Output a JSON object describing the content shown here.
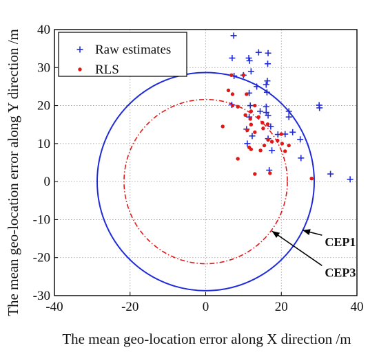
{
  "chart_data": {
    "type": "scatter",
    "xlabel": "The mean geo-location error along X direction /m",
    "ylabel": "The mean geo-location error along Y direction /m",
    "xlim": [
      -40,
      40
    ],
    "ylim": [
      -30,
      40
    ],
    "xticks": [
      -40,
      -20,
      0,
      20,
      40
    ],
    "yticks": [
      -30,
      -20,
      -10,
      0,
      10,
      20,
      30,
      40
    ],
    "grid": true,
    "legend_position": "top-left",
    "series": [
      {
        "name": "Raw estimates",
        "marker": "plus",
        "color": "#1f2bd6",
        "points": [
          [
            7.4,
            38.4
          ],
          [
            7,
            32.5
          ],
          [
            11.4,
            32.5
          ],
          [
            11.6,
            31.8
          ],
          [
            14,
            34
          ],
          [
            16.5,
            33.8
          ],
          [
            16.4,
            31
          ],
          [
            12,
            29
          ],
          [
            10,
            28
          ],
          [
            7.5,
            27.8
          ],
          [
            16.3,
            26.5
          ],
          [
            16,
            25.5
          ],
          [
            13.5,
            25
          ],
          [
            16.2,
            23.5
          ],
          [
            11.5,
            23.3
          ],
          [
            6.9,
            20.2
          ],
          [
            11.8,
            20
          ],
          [
            16,
            19.7
          ],
          [
            14.4,
            18.5
          ],
          [
            16,
            18.2
          ],
          [
            22,
            18.5
          ],
          [
            30,
            20.1
          ],
          [
            30.1,
            19.4
          ],
          [
            22,
            17
          ],
          [
            11.5,
            17
          ],
          [
            16.5,
            17.4
          ],
          [
            10.8,
            13.8
          ],
          [
            17.2,
            14.5
          ],
          [
            23,
            13
          ],
          [
            21,
            12.5
          ],
          [
            12.3,
            12
          ],
          [
            19.1,
            12.4
          ],
          [
            16.5,
            11.3
          ],
          [
            25,
            11.1
          ],
          [
            11,
            10
          ],
          [
            17.5,
            8.2
          ],
          [
            25.2,
            6.2
          ],
          [
            16.8,
            3
          ],
          [
            33,
            2
          ],
          [
            38.2,
            0.6
          ]
        ]
      },
      {
        "name": "RLS",
        "marker": "dot",
        "color": "#e01818",
        "points": [
          [
            6.8,
            28
          ],
          [
            10,
            28
          ],
          [
            6,
            24
          ],
          [
            7.1,
            23
          ],
          [
            10.8,
            23
          ],
          [
            7.1,
            20
          ],
          [
            13,
            20
          ],
          [
            12,
            18.5
          ],
          [
            8.5,
            19.7
          ],
          [
            10.5,
            17.5
          ],
          [
            11.8,
            16.5
          ],
          [
            14,
            17
          ],
          [
            12,
            15
          ],
          [
            15,
            15.5
          ],
          [
            16.4,
            15.1
          ],
          [
            15.2,
            14
          ],
          [
            4.5,
            14.5
          ],
          [
            11,
            13.5
          ],
          [
            13,
            13
          ],
          [
            20,
            12.5
          ],
          [
            20.2,
            10
          ],
          [
            16.5,
            11
          ],
          [
            15.5,
            9.5
          ],
          [
            17.5,
            10.5
          ],
          [
            19,
            10.8
          ],
          [
            22,
            9.5
          ],
          [
            11.5,
            9
          ],
          [
            12,
            8.5
          ],
          [
            21,
            8
          ],
          [
            14.5,
            8.2
          ],
          [
            8.5,
            6
          ],
          [
            13,
            2
          ],
          [
            17,
            2.2
          ],
          [
            28,
            0.8
          ]
        ]
      }
    ],
    "circles": [
      {
        "label": "CEP1",
        "center": [
          0,
          0
        ],
        "radius": 28.7,
        "style": "solid",
        "color": "#1f2bd6"
      },
      {
        "label": "CEP3",
        "center": [
          0,
          0
        ],
        "radius": 21.6,
        "style": "dash-dot",
        "color": "#e01818"
      }
    ],
    "annotations": [
      {
        "text": "CEP1",
        "arrow_target": [
          25.6,
          -12.8
        ],
        "text_at": [
          31.5,
          -17
        ]
      },
      {
        "text": "CEP3",
        "arrow_target": [
          17.5,
          -13
        ],
        "text_at": [
          31.5,
          -25
        ]
      }
    ]
  }
}
